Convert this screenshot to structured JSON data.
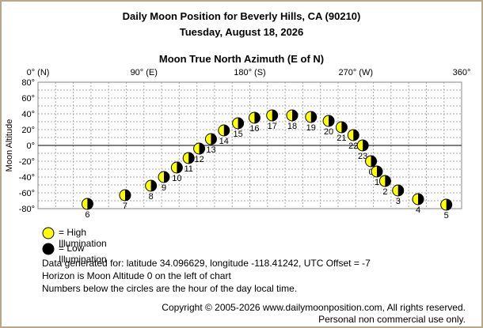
{
  "header": {
    "title": "Daily Moon Position for Beverly Hills, CA (90210)",
    "date": "Tuesday, August 18, 2026"
  },
  "chart_data": {
    "type": "scatter",
    "title": "Moon True North Azimuth (E of N)",
    "xlabel": "Moon True North Azimuth (E of N)",
    "ylabel": "Moon Altitude",
    "xlim": [
      0,
      360
    ],
    "ylim": [
      -80,
      80
    ],
    "x_ticks": [
      {
        "value": 0,
        "label": "0° (N)"
      },
      {
        "value": 90,
        "label": "90° (E)"
      },
      {
        "value": 180,
        "label": "180° (S)"
      },
      {
        "value": 270,
        "label": "270° (W)"
      },
      {
        "value": 360,
        "label": "360°"
      }
    ],
    "y_ticks": [
      {
        "value": 80,
        "label": "80°"
      },
      {
        "value": 60,
        "label": "60°"
      },
      {
        "value": 40,
        "label": "40°"
      },
      {
        "value": 20,
        "label": "20°"
      },
      {
        "value": 0,
        "label": "0°"
      },
      {
        "value": -20,
        "label": "-20°"
      },
      {
        "value": -40,
        "label": "-40°"
      },
      {
        "value": -60,
        "label": "-60°"
      },
      {
        "value": -80,
        "label": "-80°"
      }
    ],
    "grid": true,
    "horizon_altitude": 0,
    "colors": {
      "high": "#ffff00",
      "low": "#000000",
      "grid": "#aaaaaa",
      "horizon": "#000000"
    },
    "points": [
      {
        "hour": "6",
        "x": 42,
        "y": -74
      },
      {
        "hour": "7",
        "x": 74,
        "y": -63
      },
      {
        "hour": "8",
        "x": 96,
        "y": -51
      },
      {
        "hour": "9",
        "x": 107,
        "y": -40
      },
      {
        "hour": "10",
        "x": 118,
        "y": -28
      },
      {
        "hour": "11",
        "x": 128,
        "y": -16
      },
      {
        "hour": "12",
        "x": 137,
        "y": -4
      },
      {
        "hour": "13",
        "x": 147,
        "y": 8
      },
      {
        "hour": "14",
        "x": 158,
        "y": 19
      },
      {
        "hour": "15",
        "x": 170,
        "y": 28
      },
      {
        "hour": "16",
        "x": 184,
        "y": 35
      },
      {
        "hour": "17",
        "x": 199,
        "y": 38
      },
      {
        "hour": "18",
        "x": 216,
        "y": 38
      },
      {
        "hour": "19",
        "x": 232,
        "y": 36
      },
      {
        "hour": "20",
        "x": 247,
        "y": 31
      },
      {
        "hour": "21",
        "x": 258,
        "y": 23
      },
      {
        "hour": "22",
        "x": 268,
        "y": 13
      },
      {
        "hour": "23",
        "x": 276,
        "y": 0
      },
      {
        "hour": "0",
        "x": 283,
        "y": -20
      },
      {
        "hour": "1",
        "x": 288,
        "y": -33
      },
      {
        "hour": "2",
        "x": 295,
        "y": -45
      },
      {
        "hour": "3",
        "x": 306,
        "y": -57
      },
      {
        "hour": "4",
        "x": 323,
        "y": -68
      },
      {
        "hour": "5",
        "x": 347,
        "y": -75
      }
    ]
  },
  "legend": {
    "high_label": "= High Illumination",
    "low_label": "= Low Illumination"
  },
  "info": {
    "line1": "Data generated for: latitude 34.096629, longitude -118.41242, UTC Offset = -7",
    "line2": "Horizon is Moon Altitude 0 on the left of chart",
    "line3": "Numbers below the circles are the hour of the day local time."
  },
  "footer": {
    "copyright": "Copyright © 2005-2026 www.dailymoonposition.com, All rights reserved.",
    "notice": "Personal non commercial use only."
  }
}
